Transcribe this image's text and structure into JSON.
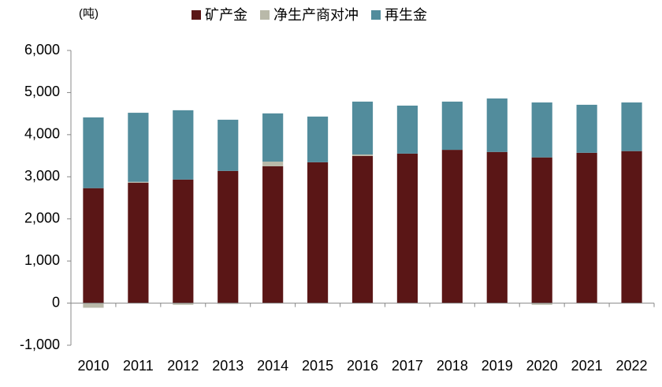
{
  "chart_data": {
    "type": "stacked-bar",
    "unit": "(吨)",
    "categories": [
      "2010",
      "2011",
      "2012",
      "2013",
      "2014",
      "2015",
      "2016",
      "2017",
      "2018",
      "2019",
      "2020",
      "2021",
      "2022"
    ],
    "series": [
      {
        "name": "矿产金",
        "color": "#5a1616",
        "values": [
          2730,
          2860,
          2935,
          3140,
          3250,
          3345,
          3495,
          3550,
          3640,
          3590,
          3460,
          3570,
          3610
        ]
      },
      {
        "name": "净生产商对冲",
        "color": "#b9b9a9",
        "values": [
          -110,
          20,
          -40,
          -20,
          110,
          -10,
          35,
          -10,
          0,
          0,
          -40,
          0,
          0
        ]
      },
      {
        "name": "再生金",
        "color": "#528c9c",
        "values": [
          1680,
          1640,
          1645,
          1215,
          1145,
          1085,
          1255,
          1140,
          1145,
          1270,
          1305,
          1140,
          1155
        ]
      }
    ],
    "ylim": [
      -1000,
      6000
    ],
    "yticks": [
      {
        "value": -1000,
        "label": "-1,000"
      },
      0,
      {
        "value": 1000,
        "label": "1,000"
      },
      {
        "value": 2000,
        "label": "2,000"
      },
      {
        "value": 3000,
        "label": "3,000"
      },
      {
        "value": 4000,
        "label": "4,000"
      },
      {
        "value": 5000,
        "label": "5,000"
      },
      {
        "value": 6000,
        "label": "6,000"
      }
    ]
  }
}
